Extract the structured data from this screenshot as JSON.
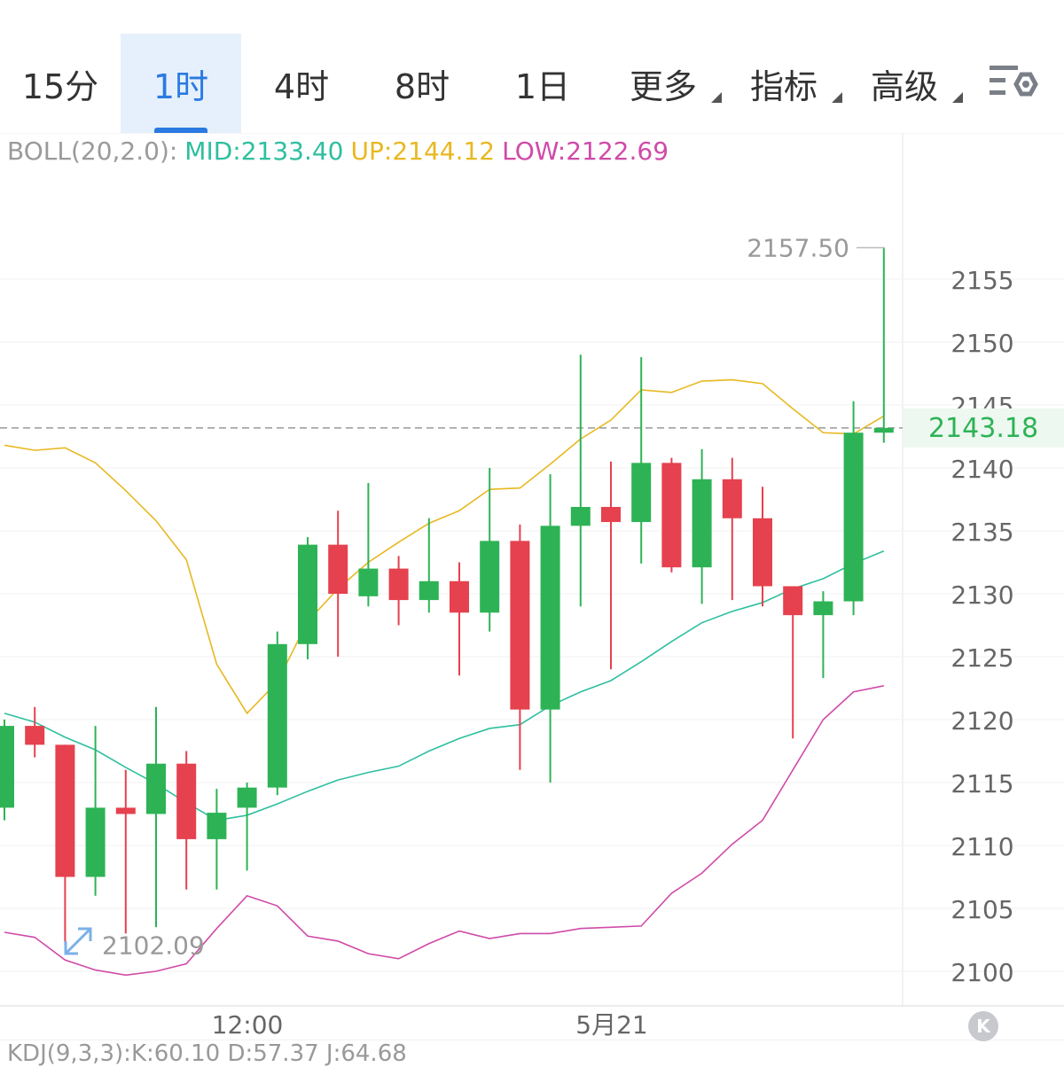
{
  "tabs": [
    {
      "label": "15分",
      "active": false,
      "dropdown": false
    },
    {
      "label": "1时",
      "active": true,
      "dropdown": false
    },
    {
      "label": "4时",
      "active": false,
      "dropdown": false
    },
    {
      "label": "8时",
      "active": false,
      "dropdown": false
    },
    {
      "label": "1日",
      "active": false,
      "dropdown": false
    },
    {
      "label": "更多",
      "active": false,
      "dropdown": true
    },
    {
      "label": "指标",
      "active": false,
      "dropdown": true
    },
    {
      "label": "高级",
      "active": false,
      "dropdown": true
    }
  ],
  "settings_icon": "chart-settings-icon",
  "indicator": {
    "name": "BOLL(20,2.0):",
    "mid": "MID:2133.40",
    "up": "UP:2144.12",
    "low": "LOW:2122.69"
  },
  "colors": {
    "up_candle": "#2db355",
    "down_candle": "#e5414e",
    "mid_line": "#2ebf9f",
    "up_line": "#e8b820",
    "low_line": "#d04aa8",
    "active_tab": "#2a7ae2",
    "price_tag": "#2db355"
  },
  "price_tag": "2143.18",
  "high_label": "2157.50",
  "low_label": "2102.09",
  "x_labels": [
    "12:00",
    "5月21"
  ],
  "kdj_text": "KDJ(9,3,3):K:60.10 D:57.37 J:64.68",
  "chart_data": {
    "type": "candlestick",
    "y_ticks": [
      2100,
      2105,
      2110,
      2115,
      2120,
      2125,
      2130,
      2135,
      2140,
      2145,
      2150,
      2155
    ],
    "ylim": [
      2097,
      2160
    ],
    "candles": [
      {
        "open": 2113.0,
        "high": 2120.0,
        "low": 2112.0,
        "close": 2119.5
      },
      {
        "open": 2119.5,
        "high": 2121.0,
        "low": 2117.0,
        "close": 2118.0
      },
      {
        "open": 2118.0,
        "high": 2118.0,
        "low": 2102.09,
        "close": 2107.5
      },
      {
        "open": 2107.5,
        "high": 2119.5,
        "low": 2106.0,
        "close": 2113.0
      },
      {
        "open": 2113.0,
        "high": 2116.0,
        "low": 2103.0,
        "close": 2112.5
      },
      {
        "open": 2112.5,
        "high": 2121.0,
        "low": 2103.5,
        "close": 2116.5
      },
      {
        "open": 2116.5,
        "high": 2117.5,
        "low": 2106.5,
        "close": 2110.5
      },
      {
        "open": 2110.5,
        "high": 2114.5,
        "low": 2106.5,
        "close": 2112.6
      },
      {
        "open": 2113.0,
        "high": 2115.0,
        "low": 2108.0,
        "close": 2114.6
      },
      {
        "open": 2114.6,
        "high": 2127.0,
        "low": 2114.0,
        "close": 2126.0
      },
      {
        "open": 2126.0,
        "high": 2134.5,
        "low": 2124.8,
        "close": 2133.9
      },
      {
        "open": 2133.9,
        "high": 2136.6,
        "low": 2125.0,
        "close": 2130.0
      },
      {
        "open": 2129.8,
        "high": 2138.8,
        "low": 2129.0,
        "close": 2132.0
      },
      {
        "open": 2132.0,
        "high": 2133.0,
        "low": 2127.5,
        "close": 2129.5
      },
      {
        "open": 2129.5,
        "high": 2136.0,
        "low": 2128.5,
        "close": 2131.0
      },
      {
        "open": 2131.0,
        "high": 2132.5,
        "low": 2123.5,
        "close": 2128.5
      },
      {
        "open": 2128.5,
        "high": 2140.0,
        "low": 2127.0,
        "close": 2134.2
      },
      {
        "open": 2134.2,
        "high": 2135.5,
        "low": 2116.0,
        "close": 2120.8
      },
      {
        "open": 2120.8,
        "high": 2139.5,
        "low": 2115.0,
        "close": 2135.4
      },
      {
        "open": 2135.4,
        "high": 2149.0,
        "low": 2129.0,
        "close": 2136.9
      },
      {
        "open": 2136.9,
        "high": 2140.5,
        "low": 2124.0,
        "close": 2135.7
      },
      {
        "open": 2135.7,
        "high": 2148.8,
        "low": 2132.4,
        "close": 2140.4
      },
      {
        "open": 2140.4,
        "high": 2140.8,
        "low": 2131.7,
        "close": 2132.1
      },
      {
        "open": 2132.1,
        "high": 2141.5,
        "low": 2129.2,
        "close": 2139.1
      },
      {
        "open": 2139.1,
        "high": 2140.8,
        "low": 2129.5,
        "close": 2136.0
      },
      {
        "open": 2136.0,
        "high": 2138.5,
        "low": 2129.0,
        "close": 2130.6
      },
      {
        "open": 2130.6,
        "high": 2130.6,
        "low": 2118.5,
        "close": 2128.3
      },
      {
        "open": 2128.3,
        "high": 2130.2,
        "low": 2123.3,
        "close": 2129.4
      },
      {
        "open": 2129.4,
        "high": 2145.3,
        "low": 2128.3,
        "close": 2142.8
      },
      {
        "open": 2142.8,
        "high": 2157.5,
        "low": 2142.0,
        "close": 2143.18
      }
    ],
    "up_band": [
      2141.8,
      2141.4,
      2141.6,
      2140.4,
      2138.2,
      2135.8,
      2132.7,
      2124.4,
      2120.5,
      2123.0,
      2127.8,
      2130.4,
      2132.5,
      2134.1,
      2135.6,
      2136.6,
      2138.3,
      2138.4,
      2140.3,
      2142.3,
      2143.8,
      2146.2,
      2146.0,
      2146.9,
      2147.0,
      2146.7,
      2144.7,
      2142.8,
      2142.7,
      2144.12
    ],
    "mid_band": [
      2120.5,
      2119.8,
      2118.6,
      2117.6,
      2116.2,
      2114.9,
      2113.4,
      2112.0,
      2112.4,
      2113.3,
      2114.3,
      2115.2,
      2115.8,
      2116.3,
      2117.5,
      2118.5,
      2119.3,
      2119.6,
      2121.1,
      2122.2,
      2123.1,
      2124.6,
      2126.2,
      2127.7,
      2128.6,
      2129.3,
      2130.4,
      2131.2,
      2132.4,
      2133.4
    ],
    "low_band": [
      2103.1,
      2102.7,
      2100.9,
      2100.1,
      2099.7,
      2100.0,
      2100.6,
      2103.4,
      2106.0,
      2105.2,
      2102.8,
      2102.4,
      2101.4,
      2101.0,
      2102.2,
      2103.2,
      2102.6,
      2103.0,
      2103.0,
      2103.4,
      2103.5,
      2103.6,
      2106.2,
      2107.8,
      2110.1,
      2112.0,
      2116.0,
      2120.0,
      2122.2,
      2122.69
    ]
  }
}
